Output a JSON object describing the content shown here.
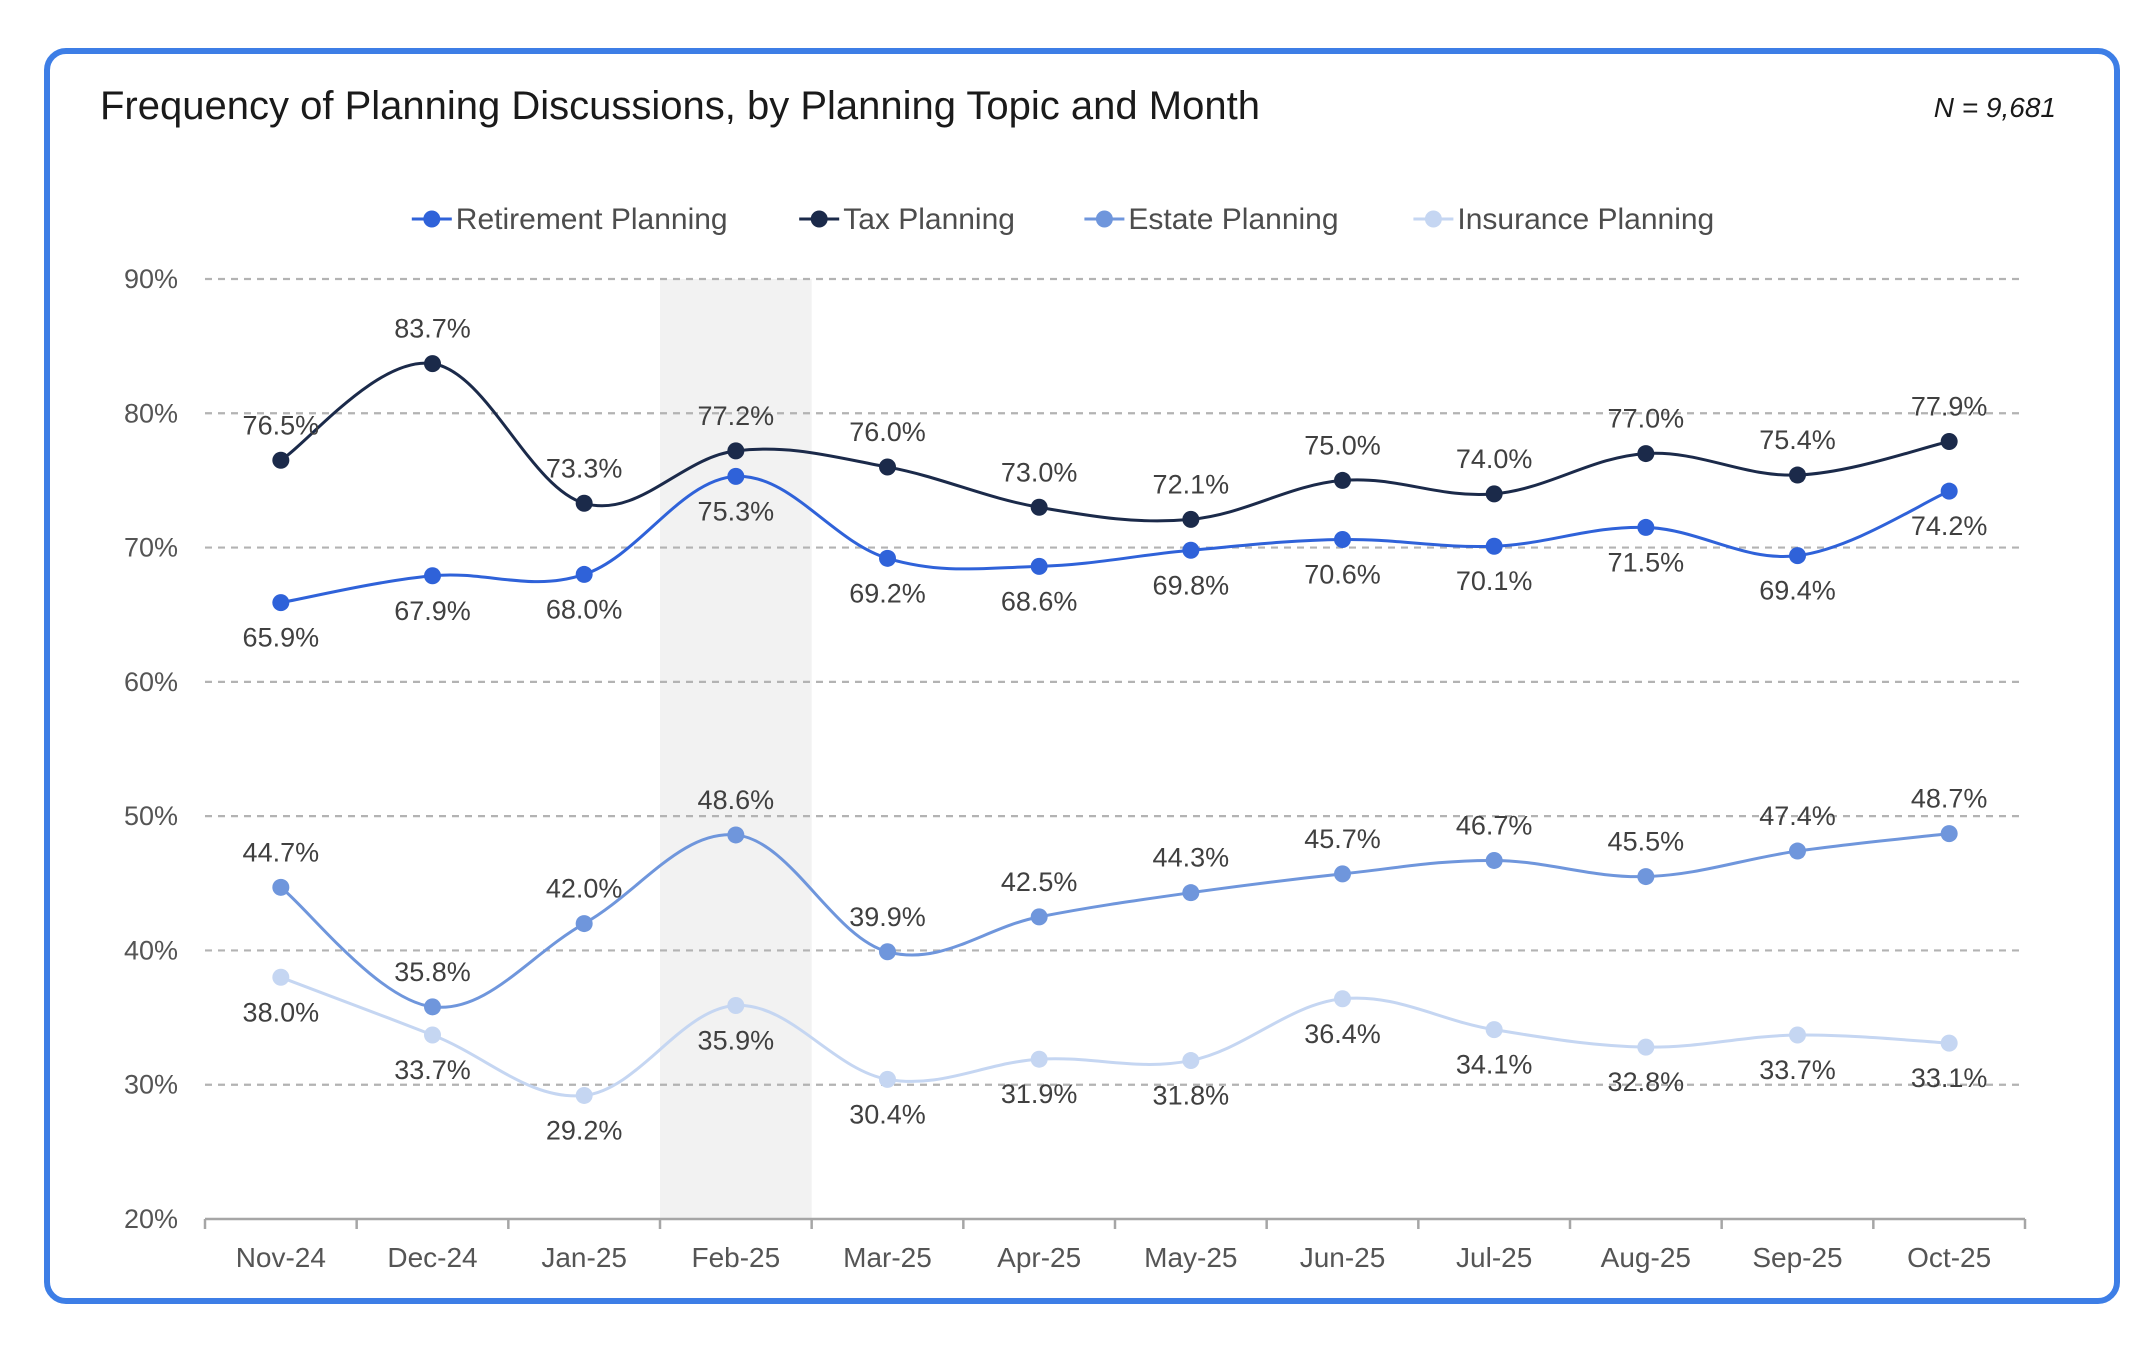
{
  "title": "Frequency of Planning Discussions, by Planning Topic and Month",
  "sample_note": "N = 9,681",
  "colors": {
    "card_border": "#3d7ee6",
    "highlight_band": "#f2f2f2"
  },
  "chart_data": {
    "type": "line",
    "title": "Frequency of Planning Discussions, by Planning Topic and Month",
    "xlabel": "",
    "ylabel": "",
    "categories": [
      "Nov-24",
      "Dec-24",
      "Jan-25",
      "Feb-25",
      "Mar-25",
      "Apr-25",
      "May-25",
      "Jun-25",
      "Jul-25",
      "Aug-25",
      "Sep-25",
      "Oct-25"
    ],
    "ylim": [
      20,
      90
    ],
    "yticks": [
      20,
      30,
      40,
      50,
      60,
      70,
      80,
      90
    ],
    "ytick_labels": [
      "20%",
      "30%",
      "40%",
      "50%",
      "60%",
      "70%",
      "80%",
      "90%"
    ],
    "grid": true,
    "legend_position": "top",
    "highlighted_category": "Feb-25",
    "series": [
      {
        "name": "Retirement Planning",
        "color": "#2f62d9",
        "values": [
          65.9,
          67.9,
          68.0,
          75.3,
          69.2,
          68.6,
          69.8,
          70.6,
          70.1,
          71.5,
          69.4,
          74.2
        ],
        "labels": [
          "65.9%",
          "67.9%",
          "68.0%",
          "75.3%",
          "69.2%",
          "68.6%",
          "69.8%",
          "70.6%",
          "70.1%",
          "71.5%",
          "69.4%",
          "74.2%"
        ],
        "label_pos": [
          "below",
          "below",
          "below",
          "below",
          "below",
          "below",
          "below",
          "below",
          "below",
          "below",
          "below",
          "below"
        ]
      },
      {
        "name": "Tax Planning",
        "color": "#1b2a4a",
        "values": [
          76.5,
          83.7,
          73.3,
          77.2,
          76.0,
          73.0,
          72.1,
          75.0,
          74.0,
          77.0,
          75.4,
          77.9
        ],
        "labels": [
          "76.5%",
          "83.7%",
          "73.3%",
          "77.2%",
          "76.0%",
          "73.0%",
          "72.1%",
          "75.0%",
          "74.0%",
          "77.0%",
          "75.4%",
          "77.9%"
        ],
        "label_pos": [
          "above",
          "above",
          "above",
          "above",
          "above",
          "above",
          "above",
          "above",
          "above",
          "above",
          "above",
          "above"
        ]
      },
      {
        "name": "Estate Planning",
        "color": "#6f96dc",
        "values": [
          44.7,
          35.8,
          42.0,
          48.6,
          39.9,
          42.5,
          44.3,
          45.7,
          46.7,
          45.5,
          47.4,
          48.7
        ],
        "labels": [
          "44.7%",
          "35.8%",
          "42.0%",
          "48.6%",
          "39.9%",
          "42.5%",
          "44.3%",
          "45.7%",
          "46.7%",
          "45.5%",
          "47.4%",
          "48.7%"
        ],
        "label_pos": [
          "above",
          "above",
          "above",
          "above",
          "above",
          "above",
          "above",
          "above",
          "above",
          "above",
          "above",
          "above"
        ]
      },
      {
        "name": "Insurance Planning",
        "color": "#c5d6f2",
        "values": [
          38.0,
          33.7,
          29.2,
          35.9,
          30.4,
          31.9,
          31.8,
          36.4,
          34.1,
          32.8,
          33.7,
          33.1
        ],
        "labels": [
          "38.0%",
          "33.7%",
          "29.2%",
          "35.9%",
          "30.4%",
          "31.9%",
          "31.8%",
          "36.4%",
          "34.1%",
          "32.8%",
          "33.7%",
          "33.1%"
        ],
        "label_pos": [
          "below",
          "below",
          "below",
          "below",
          "below",
          "below",
          "below",
          "below",
          "below",
          "below",
          "below",
          "below"
        ]
      }
    ]
  }
}
